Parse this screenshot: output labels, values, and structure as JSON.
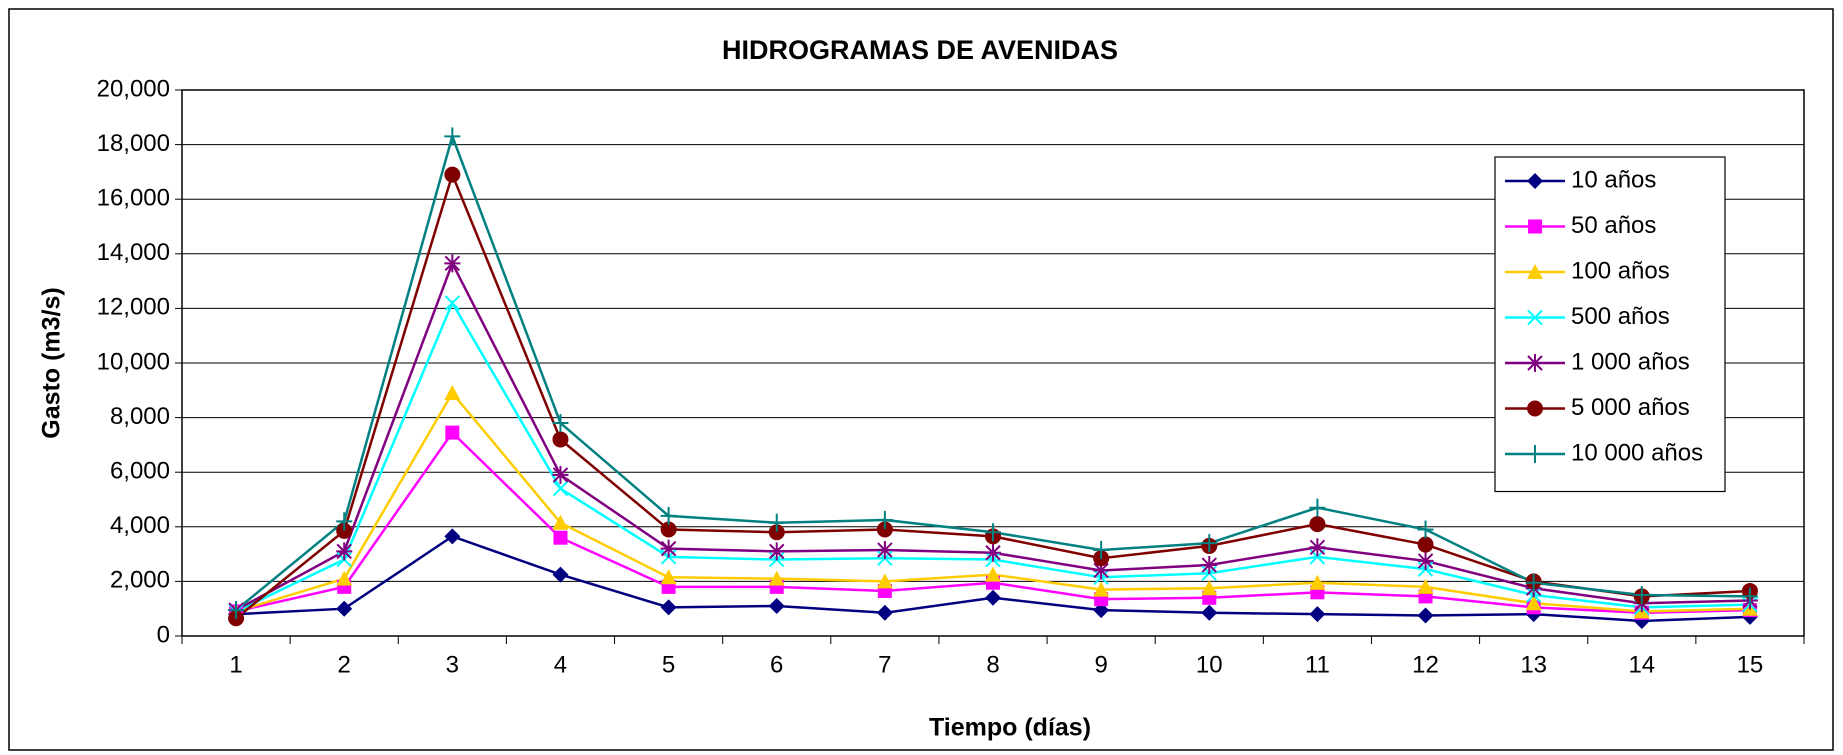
{
  "chart_data": {
    "type": "line",
    "title": "HIDROGRAMAS DE AVENIDAS",
    "xlabel": "Tiempo (días)",
    "ylabel": "Gasto (m3/s)",
    "categories": [
      "1",
      "2",
      "3",
      "4",
      "5",
      "6",
      "7",
      "8",
      "9",
      "10",
      "11",
      "12",
      "13",
      "14",
      "15"
    ],
    "ylim": [
      0,
      20000
    ],
    "yticks": [
      0,
      {
        "value": 2000,
        "label": "2,000"
      },
      {
        "value": 4000,
        "label": "4,000"
      },
      {
        "value": 6000,
        "label": "6,000"
      },
      {
        "value": 8000,
        "label": "8,000"
      },
      {
        "value": 10000,
        "label": "10,000"
      },
      {
        "value": 12000,
        "label": "12,000"
      },
      {
        "value": 14000,
        "label": "14,000"
      },
      {
        "value": 16000,
        "label": "16,000"
      },
      {
        "value": 18000,
        "label": "18,000"
      },
      {
        "value": 20000,
        "label": "20,000"
      }
    ],
    "grid": true,
    "legend": "right",
    "series": [
      {
        "name": "10 años",
        "color": "#000080",
        "marker": "diamond",
        "values": [
          800,
          1000,
          3650,
          2250,
          1050,
          1100,
          850,
          1400,
          950,
          850,
          800,
          750,
          800,
          550,
          700
        ]
      },
      {
        "name": "50 años",
        "color": "#ff00ff",
        "marker": "square",
        "values": [
          900,
          1800,
          7450,
          3600,
          1800,
          1800,
          1650,
          1950,
          1350,
          1400,
          1600,
          1450,
          1050,
          850,
          950
        ]
      },
      {
        "name": "100 años",
        "color": "#ffcc00",
        "marker": "triangle",
        "values": [
          900,
          2100,
          8900,
          4150,
          2150,
          2100,
          2000,
          2250,
          1700,
          1750,
          1950,
          1800,
          1200,
          900,
          1000
        ]
      },
      {
        "name": "500 años",
        "color": "#00ffff",
        "marker": "x",
        "values": [
          900,
          2800,
          12200,
          5400,
          2900,
          2800,
          2850,
          2800,
          2150,
          2300,
          2900,
          2450,
          1500,
          1050,
          1150
        ]
      },
      {
        "name": "1 000 años",
        "color": "#800080",
        "marker": "asterisk",
        "values": [
          950,
          3100,
          13650,
          5900,
          3200,
          3100,
          3150,
          3050,
          2400,
          2600,
          3250,
          2750,
          1750,
          1200,
          1300
        ]
      },
      {
        "name": "5 000 años",
        "color": "#800000",
        "marker": "circle",
        "values": [
          650,
          3850,
          16900,
          7200,
          3900,
          3800,
          3900,
          3650,
          2850,
          3300,
          4100,
          3350,
          2000,
          1450,
          1650
        ]
      },
      {
        "name": "10 000 años",
        "color": "#008080",
        "marker": "plus",
        "values": [
          950,
          4200,
          18300,
          7800,
          4400,
          4150,
          4250,
          3800,
          3150,
          3400,
          4700,
          3900,
          1950,
          1500,
          1450
        ]
      }
    ]
  }
}
